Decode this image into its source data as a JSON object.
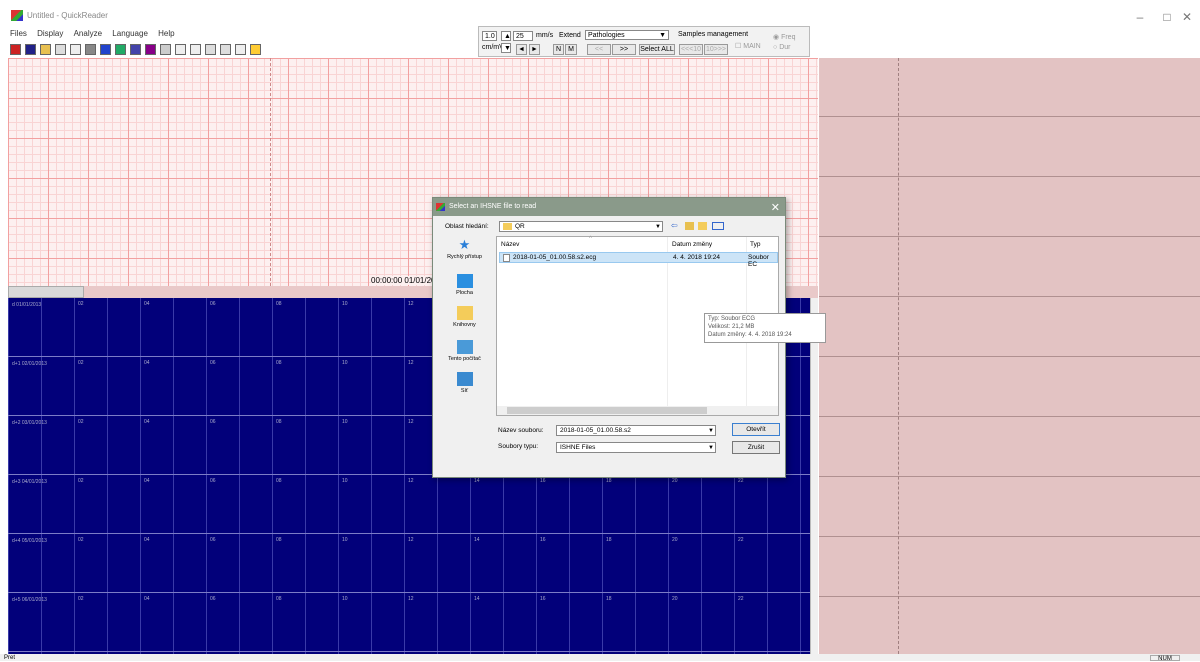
{
  "window": {
    "title": "Untitled - QuickReader",
    "controls": [
      "–",
      "□",
      "✕"
    ]
  },
  "menu": [
    "Files",
    "Display",
    "Analyze",
    "Language",
    "Help"
  ],
  "controls": {
    "gain": "1.0",
    "gain_unit": "cm/mV",
    "speed": "25",
    "speed_unit": "mm/s",
    "extend": "Extend",
    "pathologies": "Pathologies",
    "samples_management": "Samples management",
    "prev": "◄",
    "next": "►",
    "n_btn": "N",
    "m_btn": "M",
    "back": "<<",
    "fwd": ">>",
    "select_all": "Select ALL",
    "jump_back": "<<<10",
    "jump_fwd": "10>>>",
    "main": "MAIN",
    "freq": "Freq",
    "dur": "Dur"
  },
  "ecg": {
    "timestamp": "00:00:00 01/01/20"
  },
  "blue_grid": {
    "hour_labels": [
      "02",
      "04",
      "06",
      "08",
      "10",
      "12",
      "14",
      "16",
      "18",
      "20",
      "22"
    ],
    "rows": [
      "d 01/01/2013",
      "d+1 02/01/2013",
      "d+2 03/01/2013",
      "d+3 04/01/2013",
      "d+4 05/01/2013",
      "d+5 06/01/2013"
    ]
  },
  "status": {
    "text": "Pret",
    "num": "NUM"
  },
  "dialog": {
    "title": "Select an IHSNE file to read",
    "look_in_label": "Oblast hledání:",
    "look_in_value": "QR",
    "places": [
      "Rychlý přístup",
      "Plocha",
      "Knihovny",
      "Tento počítač",
      "Síť"
    ],
    "columns": {
      "name": "Název",
      "date": "Datum změny",
      "type": "Typ"
    },
    "file": {
      "name": "2018-01-05_01.00.58.s2.ecg",
      "date": "4. 4. 2018 19:24",
      "type": "Soubor EC"
    },
    "tooltip": [
      "Typ: Soubor ECG",
      "Velikost: 21,2 MB",
      "Datum změny: 4. 4. 2018 19:24"
    ],
    "filename_label": "Název souboru:",
    "filename_value": "2018-01-05_01.00.58.s2",
    "filetype_label": "Soubory typu:",
    "filetype_value": "ISHNE Files",
    "open_button": "Otevřít",
    "cancel_button": "Zrušit"
  }
}
